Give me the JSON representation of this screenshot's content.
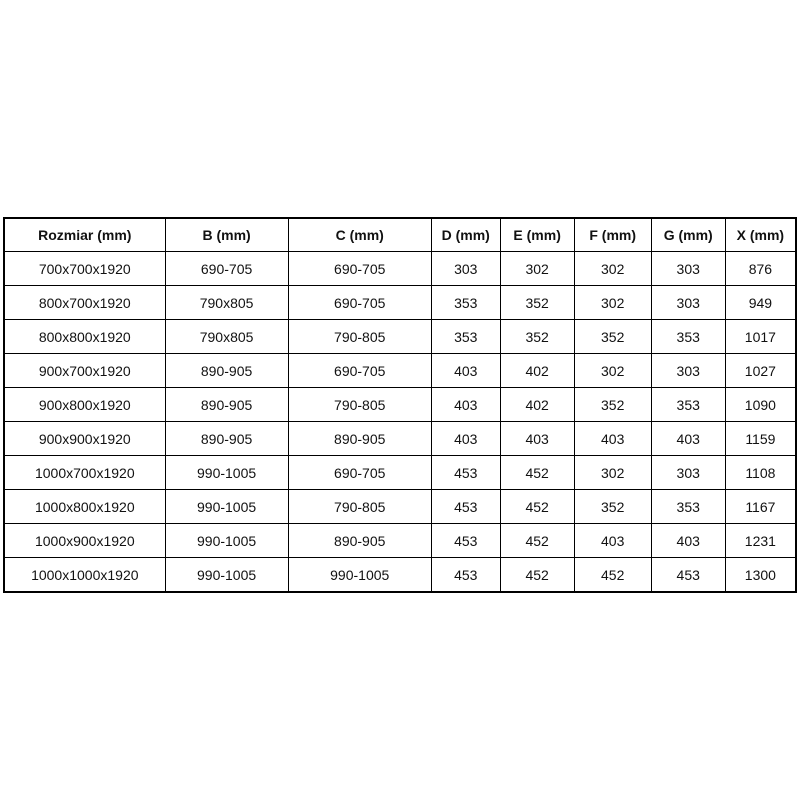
{
  "page": {
    "background_color": "#ffffff",
    "border_color": "#000000",
    "text_color": "#111111"
  },
  "chart_data": {
    "type": "table",
    "title": "",
    "columns": [
      "Rozmiar (mm)",
      "B (mm)",
      "C (mm)",
      "D (mm)",
      "E (mm)",
      "F (mm)",
      "G (mm)",
      "X (mm)"
    ],
    "rows": [
      [
        "700x700x1920",
        "690-705",
        "690-705",
        "303",
        "302",
        "302",
        "303",
        "876"
      ],
      [
        "800x700x1920",
        "790x805",
        "690-705",
        "353",
        "352",
        "302",
        "303",
        "949"
      ],
      [
        "800x800x1920",
        "790x805",
        "790-805",
        "353",
        "352",
        "352",
        "353",
        "1017"
      ],
      [
        "900x700x1920",
        "890-905",
        "690-705",
        "403",
        "402",
        "302",
        "303",
        "1027"
      ],
      [
        "900x800x1920",
        "890-905",
        "790-805",
        "403",
        "402",
        "352",
        "353",
        "1090"
      ],
      [
        "900x900x1920",
        "890-905",
        "890-905",
        "403",
        "403",
        "403",
        "403",
        "1159"
      ],
      [
        "1000x700x1920",
        "990-1005",
        "690-705",
        "453",
        "452",
        "302",
        "303",
        "1108"
      ],
      [
        "1000x800x1920",
        "990-1005",
        "790-805",
        "453",
        "452",
        "352",
        "353",
        "1167"
      ],
      [
        "1000x900x1920",
        "990-1005",
        "890-905",
        "453",
        "452",
        "403",
        "403",
        "1231"
      ],
      [
        "1000x1000x1920",
        "990-1005",
        "990-1005",
        "453",
        "452",
        "452",
        "453",
        "1300"
      ]
    ],
    "layout_hints": {
      "header_bold": true,
      "all_cells_centered": true,
      "grid": true
    }
  }
}
